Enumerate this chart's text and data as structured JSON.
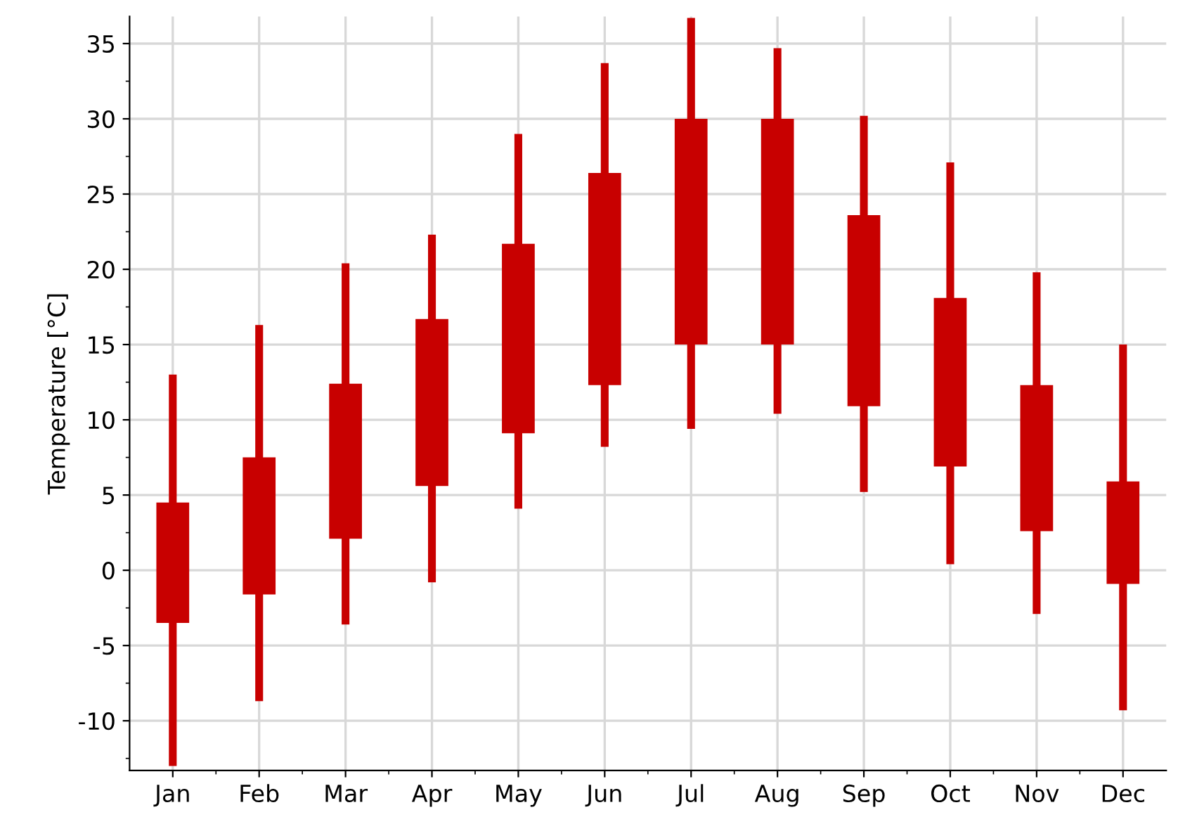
{
  "chart_data": {
    "type": "candlestick",
    "ylabel": "Temperature [°C]",
    "categories": [
      "Jan",
      "Feb",
      "Mar",
      "Apr",
      "May",
      "Jun",
      "Jul",
      "Aug",
      "Sep",
      "Oct",
      "Nov",
      "Dec"
    ],
    "ohlc": [
      [
        -3.5,
        13,
        -13,
        4.5
      ],
      [
        -1.6,
        16.3,
        -8.7,
        7.5
      ],
      [
        2.1,
        20.4,
        -3.6,
        12.4
      ],
      [
        5.6,
        22.3,
        -0.8,
        16.7
      ],
      [
        9.1,
        29,
        4.1,
        21.7
      ],
      [
        12.3,
        33.7,
        8.2,
        26.4
      ],
      [
        15,
        36.7,
        9.4,
        30
      ],
      [
        15,
        34.7,
        10.4,
        30
      ],
      [
        10.9,
        30.2,
        5.2,
        23.6
      ],
      [
        6.9,
        27.1,
        0.4,
        18.1
      ],
      [
        2.6,
        19.8,
        -2.9,
        12.3
      ],
      [
        -0.9,
        15,
        -9.3,
        5.9
      ]
    ],
    "color": "#c80000",
    "ylim": [
      -13.3,
      36.8
    ],
    "yticks": [
      -10,
      -5,
      0,
      5,
      10,
      15,
      20,
      25,
      30,
      35
    ],
    "grid": true
  }
}
